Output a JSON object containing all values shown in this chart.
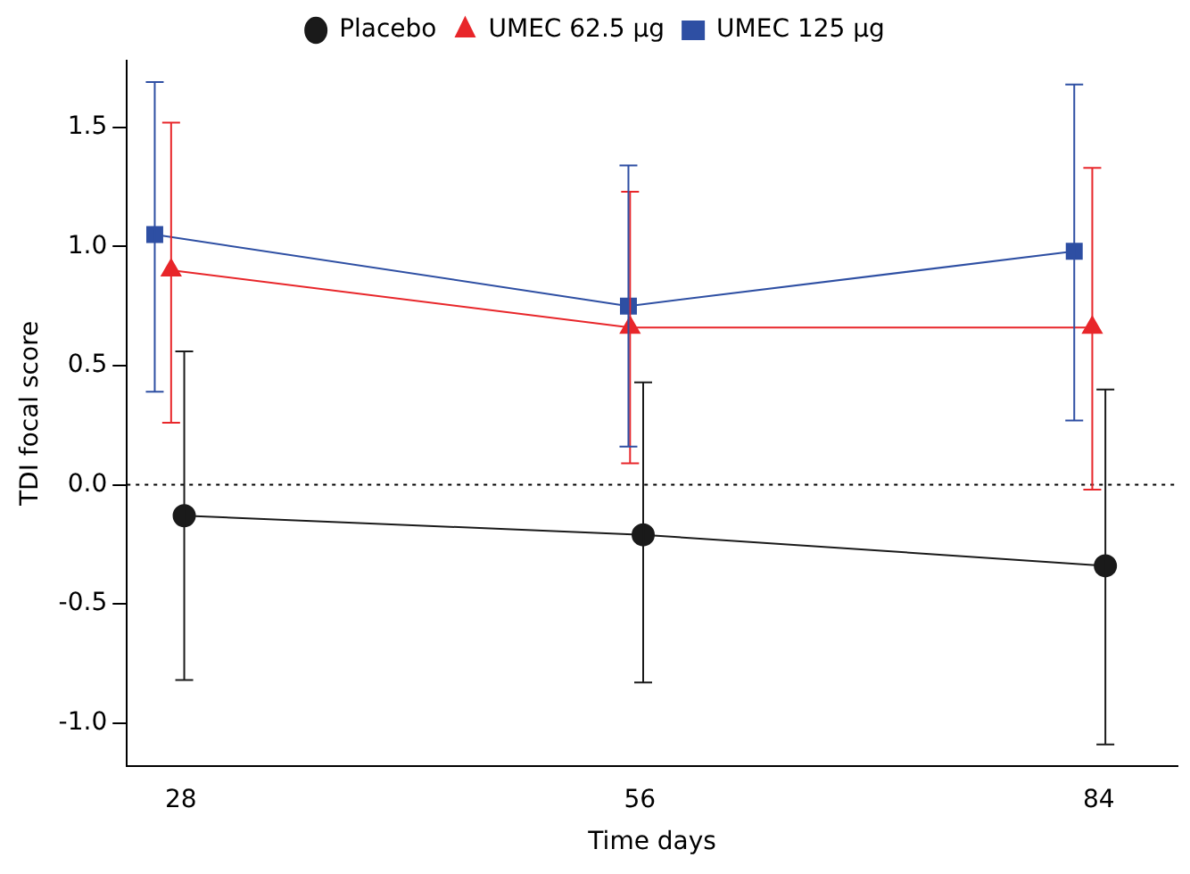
{
  "chart_data": {
    "type": "line",
    "xlabel": "Time days",
    "ylabel": "TDI focal score",
    "xlim": [
      24.7,
      88.8
    ],
    "xticks": [
      28,
      56,
      84
    ],
    "ylim": [
      -1.18,
      1.78
    ],
    "yticks": [
      {
        "value": -1,
        "label": "-1.0"
      },
      {
        "value": -0.5,
        "label": "-0.5"
      },
      {
        "value": 0,
        "label": "0.0"
      },
      {
        "value": 0.5,
        "label": "0.5"
      },
      {
        "value": 1,
        "label": "1.0"
      },
      {
        "value": 1.5,
        "label": "1.5"
      }
    ],
    "grid": false,
    "legend": "top",
    "line_style": "solid",
    "ref_lines": [
      {
        "axis": "y",
        "value": 0,
        "line_style": "dotted",
        "color": "#000000"
      }
    ],
    "series": [
      {
        "name": "Placebo",
        "color": "#1a1a1a",
        "marker": "circle",
        "x": [
          28.2,
          56.2,
          84.4
        ],
        "values": [
          -0.13,
          -0.21,
          -0.34
        ],
        "errors": [
          [
            -0.82,
            0.56
          ],
          [
            -0.83,
            0.43
          ],
          [
            -1.09,
            0.4
          ]
        ]
      },
      {
        "name": "UMEC 62.5 μg",
        "color": "#e8262a",
        "marker": "triangle",
        "x": [
          27.4,
          55.4,
          83.6
        ],
        "values": [
          0.9,
          0.66,
          0.66
        ],
        "errors": [
          [
            0.26,
            1.52
          ],
          [
            0.09,
            1.23
          ],
          [
            -0.02,
            1.33
          ]
        ]
      },
      {
        "name": "UMEC 125 μg",
        "color": "#2e4fa3",
        "marker": "square",
        "x": [
          26.4,
          55.3,
          82.5
        ],
        "values": [
          1.05,
          0.75,
          0.98
        ],
        "errors": [
          [
            0.39,
            1.69
          ],
          [
            0.16,
            1.34
          ],
          [
            0.27,
            1.68
          ]
        ]
      }
    ]
  }
}
